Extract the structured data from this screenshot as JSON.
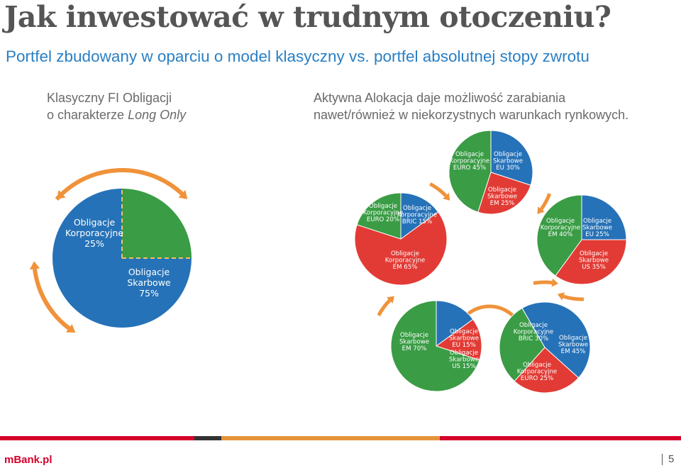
{
  "title": "Jak inwestować w trudnym otoczeniu?",
  "subtitle": "Portfel zbudowany w oparciu o model klasyczny vs. portfel absolutnej stopy zwrotu",
  "left_desc": {
    "line1": "Klasyczny FI Obligacji",
    "line2_prefix": "o charakterze ",
    "line2_italic": "Long Only"
  },
  "right_desc": {
    "line1": "Aktywna Alokacja daje możliwość zarabiania",
    "line2": "nawet/również w niekorzystnych warunkach rynkowych."
  },
  "colors": {
    "blue": "#2672b8",
    "green": "#3a9c45",
    "red": "#e23b35",
    "orange": "#f0923a",
    "footer_red": "#d6002a",
    "footer_dark": "#333333",
    "footer_orange": "#e5933a"
  },
  "chart_data": [
    {
      "type": "pie",
      "name": "classic",
      "slices": [
        {
          "label_l1": "Obligacje",
          "label_l2": "Korporacyjne",
          "label_l3": "25%",
          "value": 25,
          "color": "green"
        },
        {
          "label_l1": "Obligacje",
          "label_l2": "Skarbowe",
          "label_l3": "75%",
          "value": 75,
          "color": "blue"
        }
      ]
    },
    {
      "type": "pie",
      "name": "top",
      "slices": [
        {
          "label_l1": "Obligacje",
          "label_l2": "Skarbowe",
          "label_l3": "EU 30%",
          "value": 30,
          "color": "blue"
        },
        {
          "label_l1": "Obligacje",
          "label_l2": "Skarbowe",
          "label_l3": "EM 25%",
          "value": 25,
          "color": "red"
        },
        {
          "label_l1": "Obligacje",
          "label_l2": "Korporacyjne",
          "label_l3": "EURO 45%",
          "value": 45,
          "color": "green"
        }
      ]
    },
    {
      "type": "pie",
      "name": "left",
      "slices": [
        {
          "label_l1": "Obligacje",
          "label_l2": "Korporacyjne",
          "label_l3": "BRIC 15%",
          "value": 15,
          "color": "blue"
        },
        {
          "label_l1": "Obligacje",
          "label_l2": "Korporacyjne",
          "label_l3": "EM 65%",
          "value": 65,
          "color": "red"
        },
        {
          "label_l1": "Obligacje",
          "label_l2": "Korporacyjne",
          "label_l3": "EURO 20%",
          "value": 20,
          "color": "green"
        }
      ]
    },
    {
      "type": "pie",
      "name": "right",
      "slices": [
        {
          "label_l1": "Obligacje",
          "label_l2": "Skarbowe",
          "label_l3": "EU 25%",
          "value": 25,
          "color": "blue"
        },
        {
          "label_l1": "Obligacje",
          "label_l2": "Skarbowe",
          "label_l3": "US 35%",
          "value": 35,
          "color": "red"
        },
        {
          "label_l1": "Obligacje",
          "label_l2": "Korporacyjne",
          "label_l3": "EM 40%",
          "value": 40,
          "color": "green"
        }
      ]
    },
    {
      "type": "pie",
      "name": "bottom-left",
      "slices": [
        {
          "label_l1": "Obligacje",
          "label_l2": "Skarbowe",
          "label_l3": "EU 15%",
          "value": 15,
          "color": "blue"
        },
        {
          "label_l1": "Obligacje",
          "label_l2": "Skarbowe",
          "label_l3": "US 15%",
          "value": 15,
          "color": "red"
        },
        {
          "label_l1": "Obligacje",
          "label_l2": "Skarbowe",
          "label_l3": "EM 70%",
          "value": 70,
          "color": "green"
        }
      ]
    },
    {
      "type": "pie",
      "name": "bottom-right",
      "slices": [
        {
          "label_l1": "Obligacje",
          "label_l2": "Skarbowe",
          "label_l3": "EM 45%",
          "value": 45,
          "color": "blue"
        },
        {
          "label_l1": "Obligacje",
          "label_l2": "Korporacyjne",
          "label_l3": "EURO 25%",
          "value": 25,
          "color": "red"
        },
        {
          "label_l1": "Obligacje",
          "label_l2": "Korporacyjne",
          "label_l3": "BRIC 30%",
          "value": 30,
          "color": "green"
        }
      ]
    }
  ],
  "footer": {
    "brand": "mBank.pl",
    "page": "5"
  }
}
